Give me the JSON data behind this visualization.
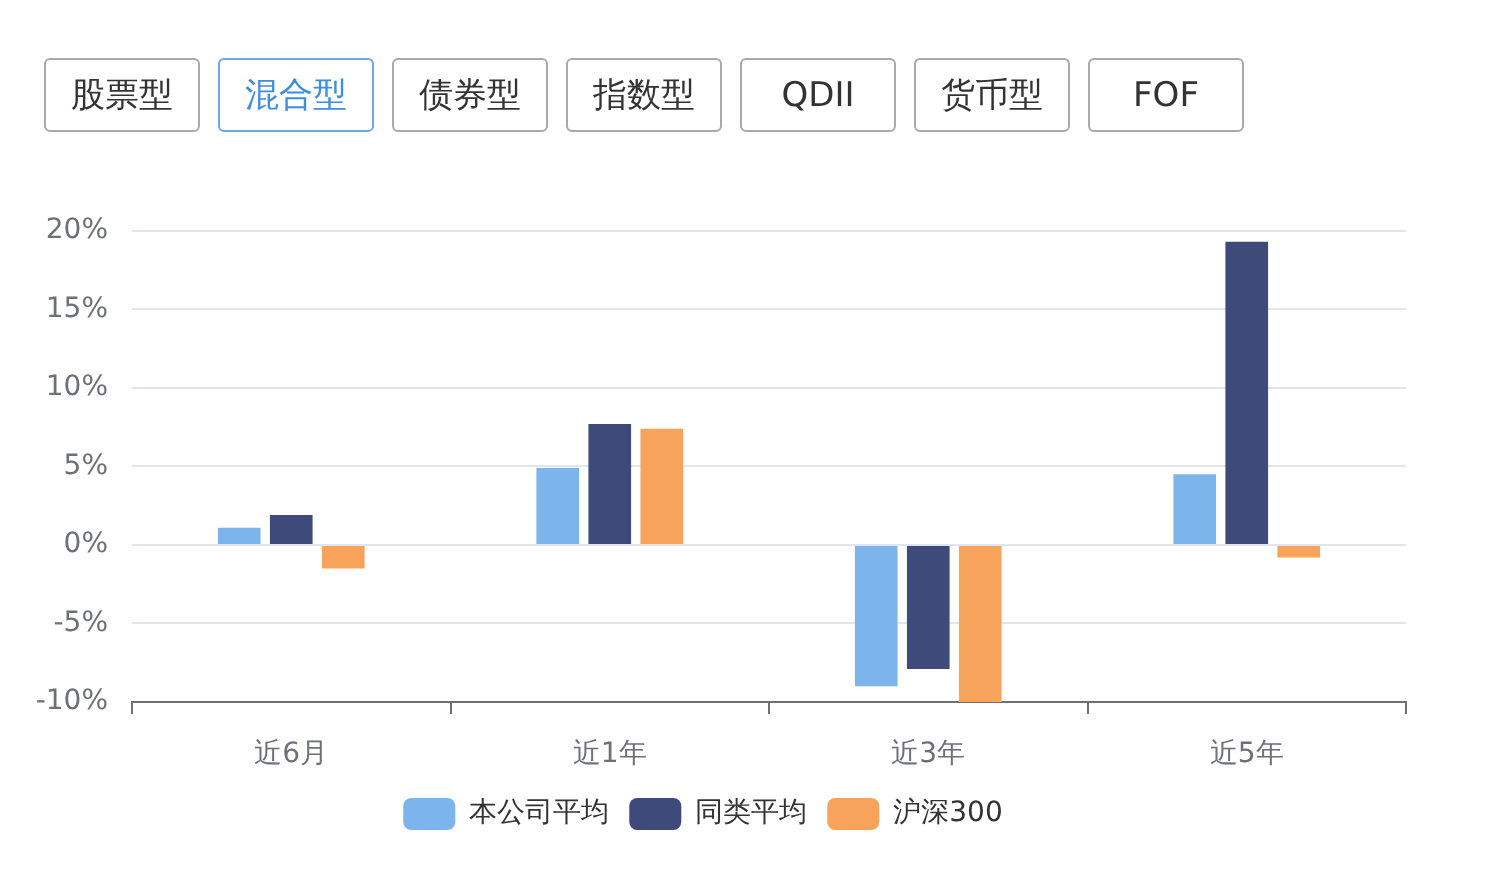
{
  "chart_data": {
    "type": "bar",
    "categories": [
      "近6月",
      "近1年",
      "近3年",
      "近5年"
    ],
    "series": [
      {
        "name": "本公司平均",
        "color": "#7cb5ec",
        "values": [
          1.1,
          4.9,
          -9.0,
          4.5
        ]
      },
      {
        "name": "同类平均",
        "color": "#3d4a7a",
        "values": [
          1.9,
          7.7,
          -7.9,
          19.3
        ]
      },
      {
        "name": "沪深300",
        "color": "#f7a35c",
        "values": [
          -1.5,
          7.4,
          -10,
          -0.8
        ]
      }
    ],
    "ylim": [
      -10,
      20
    ],
    "yticks": [
      {
        "value": -10,
        "label": "-10%"
      },
      {
        "value": -5,
        "label": "-5%"
      },
      {
        "value": 0,
        "label": "0%"
      },
      {
        "value": 5,
        "label": "5%"
      },
      {
        "value": 10,
        "label": "10%"
      },
      {
        "value": 15,
        "label": "15%"
      },
      {
        "value": 20,
        "label": "20%"
      }
    ],
    "grid": "y",
    "legend": "bottom",
    "annotations": [
      "股票型",
      "混合型",
      "债券型",
      "指数型",
      "QDII",
      "货币型",
      "FOF"
    ]
  }
}
